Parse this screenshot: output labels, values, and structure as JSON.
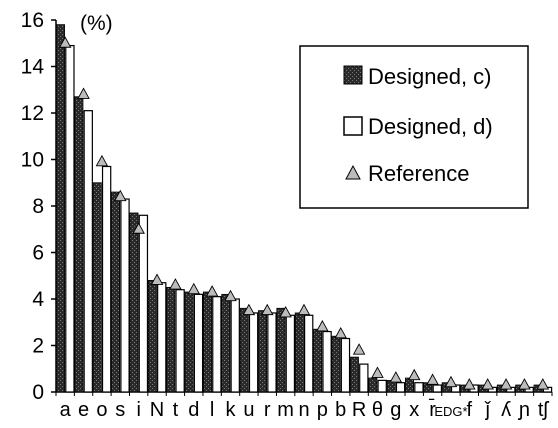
{
  "chart_data": {
    "type": "bar",
    "unit_label": "(%)",
    "ylim": [
      0,
      16
    ],
    "yticks": [
      "0",
      "2",
      "4",
      "6",
      "8",
      "10",
      "12",
      "14",
      "16"
    ],
    "grid": false,
    "legend_position": "top-right",
    "categories": [
      "a",
      "e",
      "o",
      "s",
      "i",
      "N",
      "t",
      "d",
      "l",
      "k",
      "u",
      "r",
      "m",
      "n",
      "p",
      "b",
      "R",
      "θ",
      "g",
      "x",
      "r̄",
      "EDG*",
      "f",
      "ǰ",
      "ʎ",
      "ɲ",
      "tʃ"
    ],
    "series": [
      {
        "name": "Designed, c)",
        "style": "dark-hatched",
        "values": [
          15.8,
          12.7,
          9.0,
          8.6,
          7.7,
          4.8,
          4.5,
          4.3,
          4.3,
          4.2,
          3.6,
          3.5,
          3.6,
          3.4,
          2.7,
          2.4,
          1.5,
          0.6,
          0.5,
          0.6,
          0.4,
          0.4,
          0.3,
          0.3,
          0.3,
          0.3,
          0.3
        ]
      },
      {
        "name": "Designed, d)",
        "style": "white",
        "values": [
          14.9,
          12.1,
          9.7,
          8.3,
          7.6,
          4.7,
          4.4,
          4.2,
          4.1,
          4.0,
          3.4,
          3.4,
          3.3,
          3.3,
          2.6,
          2.3,
          1.2,
          0.5,
          0.4,
          0.4,
          0.3,
          0.3,
          0.3,
          0.2,
          0.2,
          0.2,
          0.2
        ]
      },
      {
        "name": "Reference",
        "style": "triangle-marker",
        "values": [
          15.0,
          12.8,
          9.9,
          8.4,
          7.0,
          4.8,
          4.6,
          4.4,
          4.3,
          4.1,
          3.5,
          3.5,
          3.4,
          3.5,
          2.8,
          2.5,
          1.8,
          0.8,
          0.6,
          0.7,
          0.5,
          0.4,
          0.3,
          0.3,
          0.3,
          0.3,
          0.3
        ]
      }
    ]
  },
  "colors": {
    "bar_dark": "#2a2a2a",
    "bar_white": "#ffffff",
    "marker_fill": "#bcbcbc",
    "axis": "#000000"
  }
}
